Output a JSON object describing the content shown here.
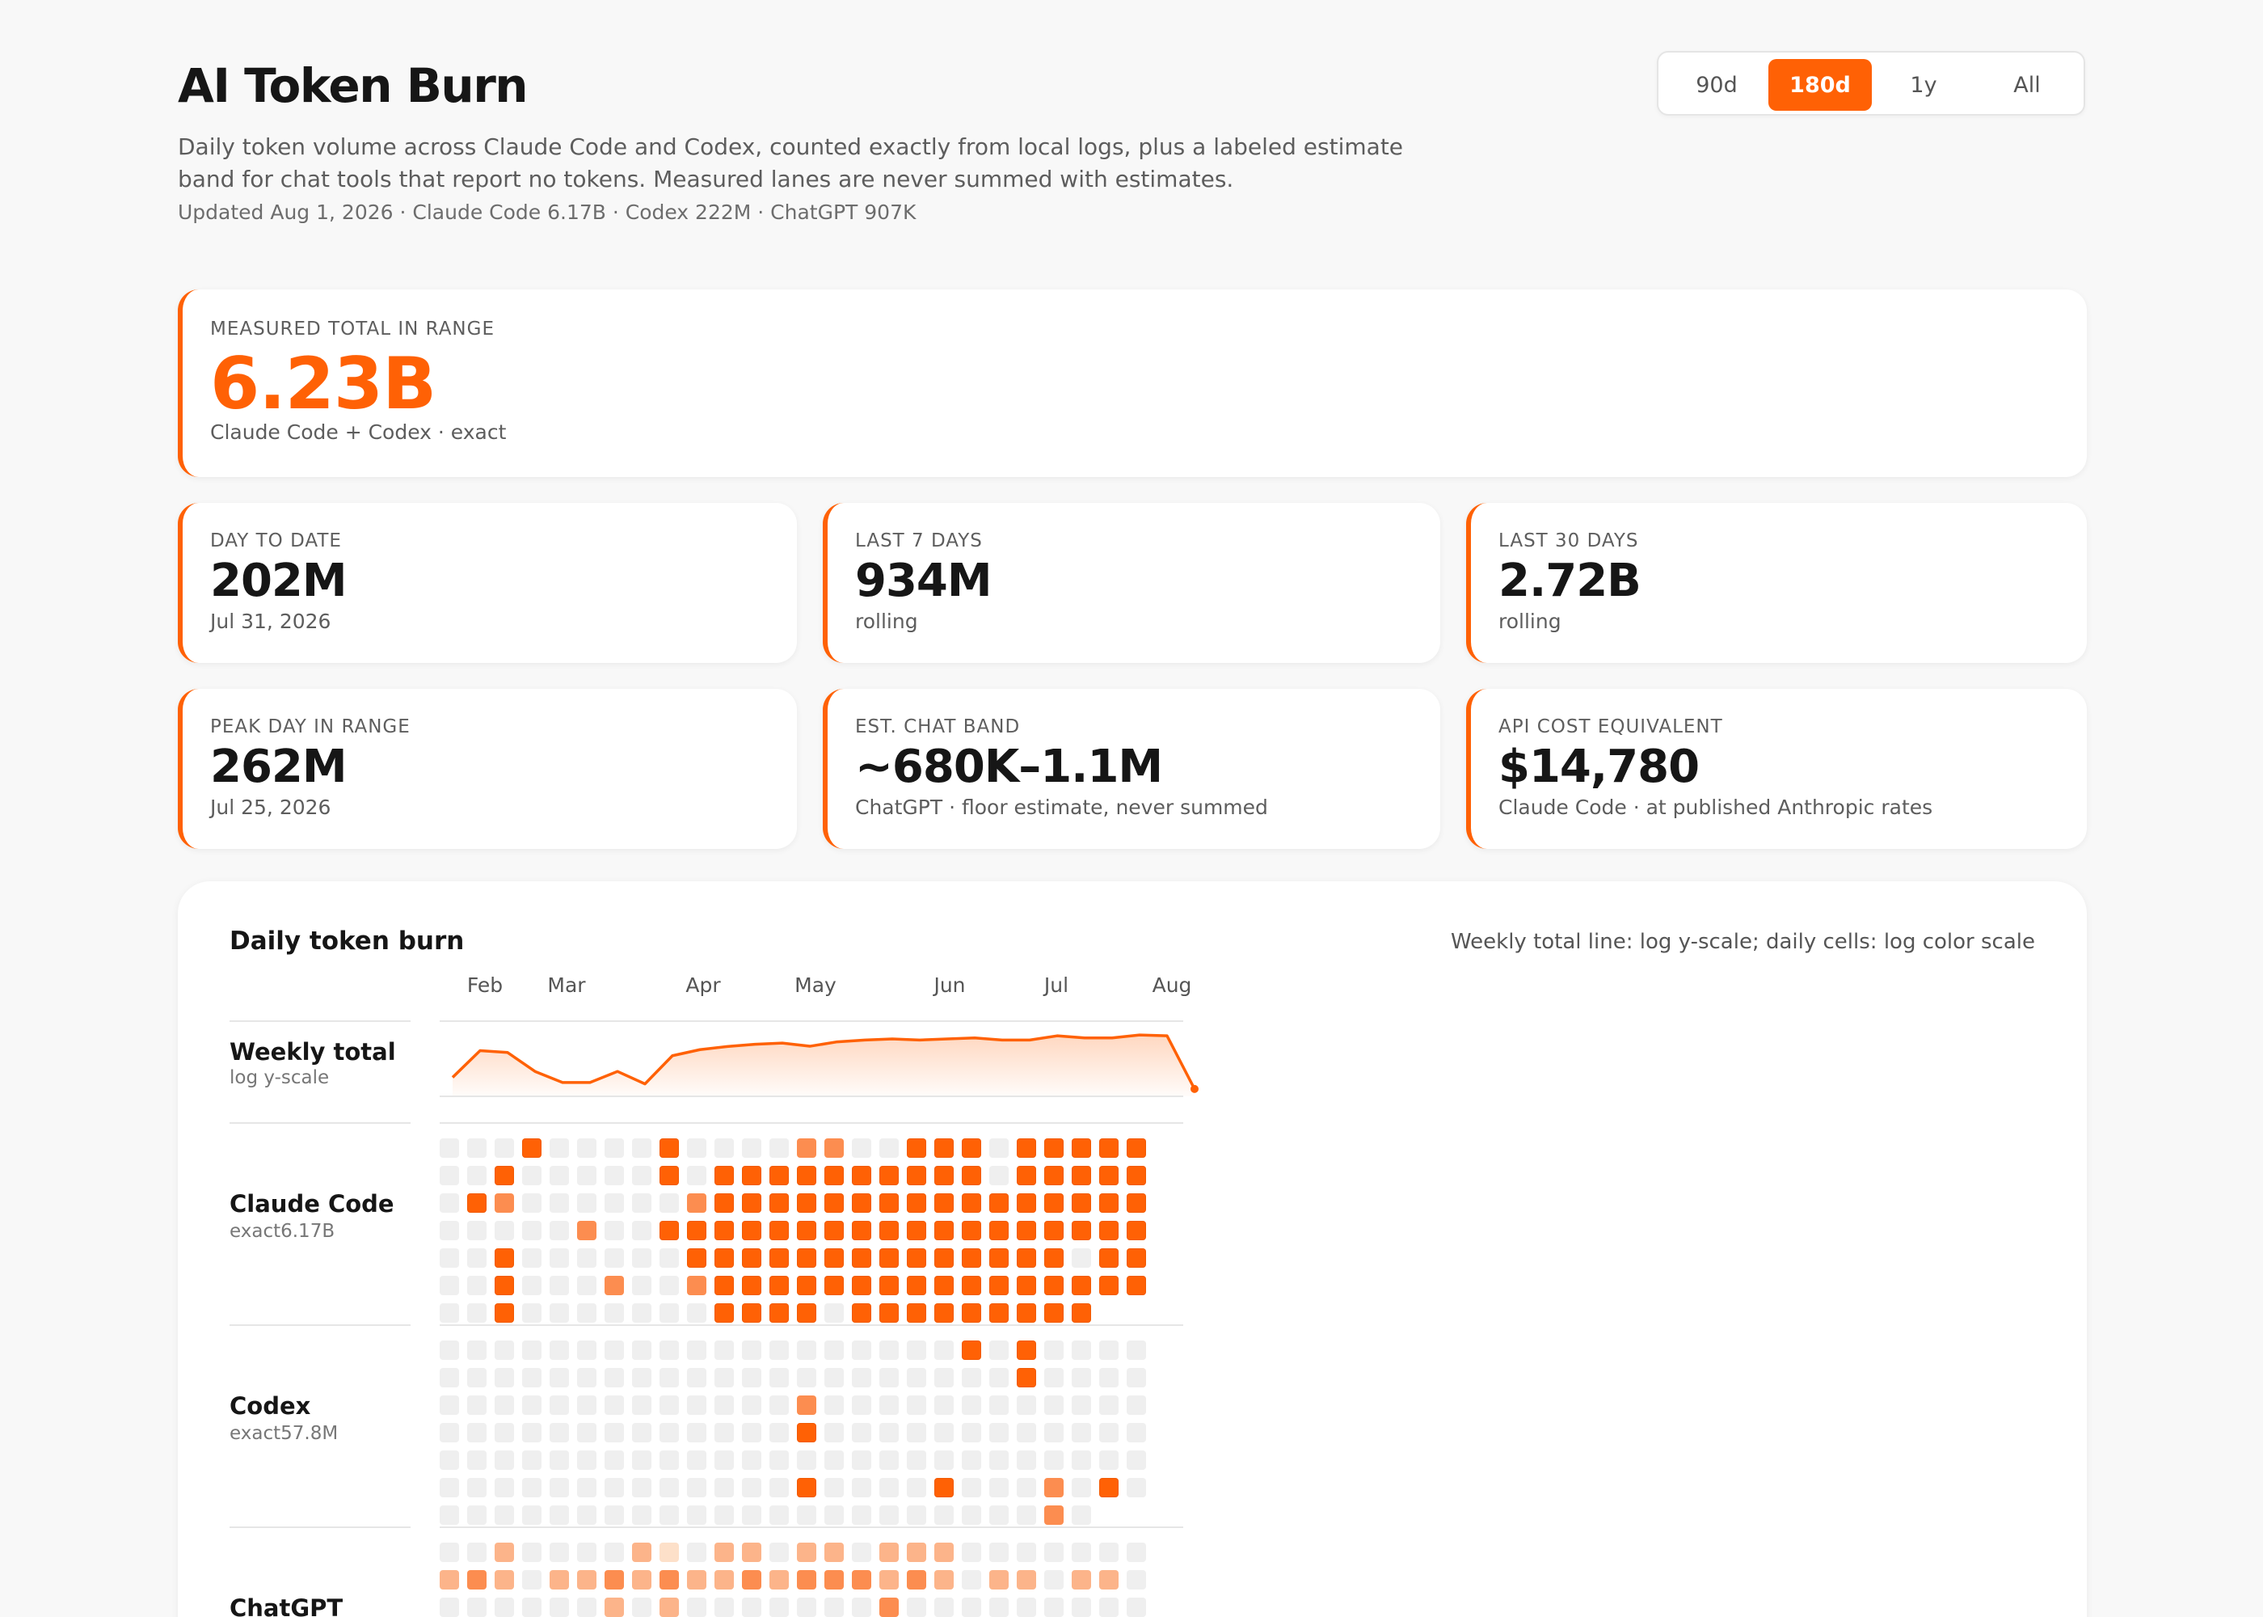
{
  "header": {
    "title": "AI Token Burn",
    "subtitle": "Daily token volume across Claude Code and Codex, counted exactly from local logs, plus a labeled estimate band for chat tools that report no tokens. Measured lanes are never summed with estimates.",
    "updated": "Updated Aug 1, 2026 · Claude Code 6.17B · Codex 222M · ChatGPT 907K"
  },
  "range": {
    "options": [
      "90d",
      "180d",
      "1y",
      "All"
    ],
    "selected": "180d"
  },
  "cards": {
    "total": {
      "label": "MEASURED TOTAL IN RANGE",
      "value": "6.23B",
      "note": "Claude Code + Codex · exact"
    },
    "day": {
      "label": "DAY TO DATE",
      "value": "202M",
      "note": "Jul 31, 2026"
    },
    "week": {
      "label": "LAST 7 DAYS",
      "value": "934M",
      "note": "rolling"
    },
    "month": {
      "label": "LAST 30 DAYS",
      "value": "2.72B",
      "note": "rolling"
    },
    "peak": {
      "label": "PEAK DAY IN RANGE",
      "value": "262M",
      "note": "Jul 25, 2026"
    },
    "chat": {
      "label": "EST. CHAT BAND",
      "value": "~680K–1.1M",
      "note": "ChatGPT · floor estimate, never summed"
    },
    "cost": {
      "label": "API COST EQUIVALENT",
      "value": "$14,780",
      "note": "Claude Code · at published Anthropic rates"
    }
  },
  "panel": {
    "title": "Daily token burn",
    "caption": "Weekly total line: log y-scale; daily cells: log color scale",
    "months": [
      "Feb",
      "Mar",
      "Apr",
      "May",
      "Jun",
      "Jul",
      "Aug"
    ]
  },
  "lanes": {
    "weekly": {
      "title": "Weekly total",
      "sub": "log y-scale"
    },
    "claude": {
      "title": "Claude Code",
      "sub": "exact6.17B"
    },
    "codex": {
      "title": "Codex",
      "sub": "exact57.8M"
    },
    "chatgpt": {
      "title": "ChatGPT",
      "sub": ""
    }
  },
  "colors": {
    "accent": "#ff6105",
    "empty_cell": "#efefef",
    "levels": [
      "#efefef",
      "#fde0c9",
      "#fcb48a",
      "#fc8d50",
      "#ff6105"
    ]
  },
  "chart_data": [
    {
      "type": "line",
      "title": "Weekly total",
      "y_scale": "log",
      "x_ticks": [
        "Feb",
        "Mar",
        "Apr",
        "May",
        "Jun",
        "Jul",
        "Aug"
      ],
      "values": [
        2.0,
        6.5,
        6.0,
        2.6,
        1.6,
        1.6,
        2.6,
        1.5,
        5.2,
        6.8,
        7.8,
        8.6,
        9.1,
        7.9,
        9.6,
        10.4,
        10.9,
        10.4,
        10.9,
        11.4,
        10.4,
        10.4,
        12.5,
        11.4,
        11.4,
        13.0,
        12.5,
        1.2
      ]
    },
    {
      "type": "heatmap",
      "title": "Claude Code",
      "color_scale": "log",
      "rows": [
        [
          0,
          0,
          0,
          4,
          0,
          0,
          0,
          0,
          4,
          0,
          0,
          0,
          0,
          3,
          3,
          0,
          0,
          4,
          4,
          4,
          0,
          4,
          4,
          4,
          4,
          4
        ],
        [
          0,
          0,
          4,
          0,
          0,
          0,
          0,
          0,
          4,
          0,
          4,
          4,
          4,
          4,
          4,
          4,
          4,
          4,
          4,
          4,
          0,
          4,
          4,
          4,
          4,
          4
        ],
        [
          0,
          4,
          3,
          0,
          0,
          0,
          0,
          0,
          0,
          3,
          4,
          4,
          4,
          4,
          4,
          4,
          4,
          4,
          4,
          4,
          4,
          4,
          4,
          4,
          4,
          4
        ],
        [
          0,
          0,
          0,
          0,
          0,
          3,
          0,
          0,
          4,
          4,
          4,
          4,
          4,
          4,
          4,
          4,
          4,
          4,
          4,
          4,
          4,
          4,
          4,
          4,
          4,
          4
        ],
        [
          0,
          0,
          4,
          0,
          0,
          0,
          0,
          0,
          0,
          4,
          4,
          4,
          4,
          4,
          4,
          4,
          4,
          4,
          4,
          4,
          4,
          4,
          4,
          0,
          4,
          4
        ],
        [
          0,
          0,
          4,
          0,
          0,
          0,
          3,
          0,
          0,
          3,
          4,
          4,
          4,
          4,
          4,
          4,
          4,
          4,
          4,
          4,
          4,
          4,
          4,
          4,
          4,
          4
        ],
        [
          0,
          0,
          4,
          0,
          0,
          0,
          0,
          0,
          0,
          0,
          4,
          4,
          4,
          4,
          0,
          4,
          4,
          4,
          4,
          4,
          4,
          4,
          4,
          4,
          null,
          null
        ]
      ]
    },
    {
      "type": "heatmap",
      "title": "Codex",
      "color_scale": "log",
      "rows": [
        [
          0,
          0,
          0,
          0,
          0,
          0,
          0,
          0,
          0,
          0,
          0,
          0,
          0,
          0,
          0,
          0,
          0,
          0,
          0,
          4,
          0,
          4,
          0,
          0,
          0,
          0
        ],
        [
          0,
          0,
          0,
          0,
          0,
          0,
          0,
          0,
          0,
          0,
          0,
          0,
          0,
          0,
          0,
          0,
          0,
          0,
          0,
          0,
          0,
          4,
          0,
          0,
          0,
          0
        ],
        [
          0,
          0,
          0,
          0,
          0,
          0,
          0,
          0,
          0,
          0,
          0,
          0,
          0,
          3,
          0,
          0,
          0,
          0,
          0,
          0,
          0,
          0,
          0,
          0,
          0,
          0
        ],
        [
          0,
          0,
          0,
          0,
          0,
          0,
          0,
          0,
          0,
          0,
          0,
          0,
          0,
          4,
          0,
          0,
          0,
          0,
          0,
          0,
          0,
          0,
          0,
          0,
          0,
          0
        ],
        [
          0,
          0,
          0,
          0,
          0,
          0,
          0,
          0,
          0,
          0,
          0,
          0,
          0,
          0,
          0,
          0,
          0,
          0,
          0,
          0,
          0,
          0,
          0,
          0,
          0,
          0
        ],
        [
          0,
          0,
          0,
          0,
          0,
          0,
          0,
          0,
          0,
          0,
          0,
          0,
          0,
          4,
          0,
          0,
          0,
          0,
          4,
          0,
          0,
          0,
          3,
          0,
          4,
          0
        ],
        [
          0,
          0,
          0,
          0,
          0,
          0,
          0,
          0,
          0,
          0,
          0,
          0,
          0,
          0,
          0,
          0,
          0,
          0,
          0,
          0,
          0,
          0,
          3,
          0,
          null,
          null
        ]
      ]
    },
    {
      "type": "heatmap",
      "title": "ChatGPT",
      "color_scale": "log",
      "rows": [
        [
          0,
          0,
          2,
          0,
          0,
          0,
          0,
          2,
          1,
          0,
          2,
          2,
          0,
          2,
          2,
          0,
          2,
          2,
          2,
          0,
          0,
          0,
          0,
          0,
          0,
          0
        ],
        [
          2,
          3,
          2,
          0,
          2,
          2,
          3,
          2,
          3,
          2,
          2,
          3,
          2,
          3,
          3,
          3,
          2,
          3,
          2,
          0,
          2,
          2,
          0,
          2,
          2,
          0
        ],
        [
          0,
          0,
          0,
          0,
          0,
          0,
          2,
          0,
          2,
          0,
          0,
          0,
          0,
          0,
          0,
          0,
          3,
          0,
          0,
          0,
          0,
          0,
          0,
          0,
          0,
          0
        ]
      ]
    }
  ]
}
